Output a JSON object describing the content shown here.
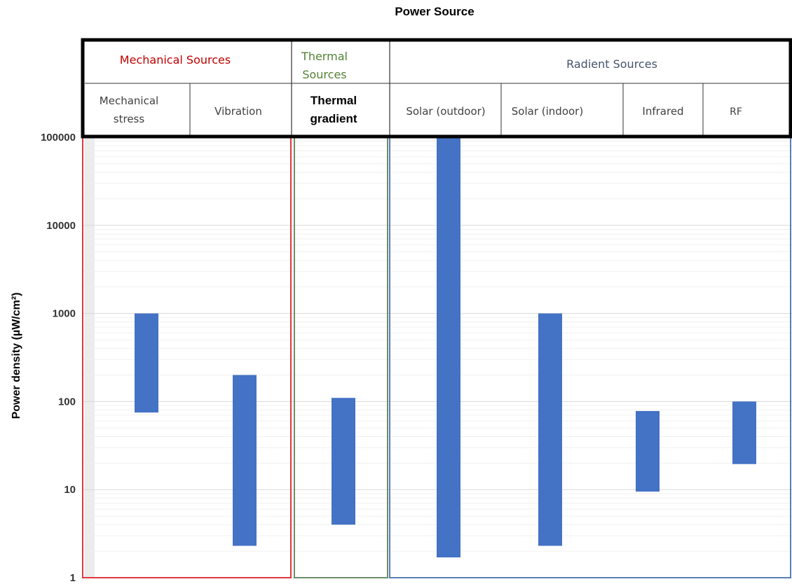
{
  "chart_data": {
    "type": "bar",
    "title": "Power Source",
    "ylabel": "Power density (µW/cm²)",
    "yscale": "log",
    "ylim": [
      1,
      100000
    ],
    "yticks": [
      {
        "value": 1,
        "label": "1"
      },
      {
        "value": 10,
        "label": "10"
      },
      {
        "value": 100,
        "label": "100"
      },
      {
        "value": 1000,
        "label": "1000"
      },
      {
        "value": 10000,
        "label": "10000"
      },
      {
        "value": 100000,
        "label": "100000"
      }
    ],
    "grid": true,
    "bar_color": "#4472C4",
    "groups": [
      {
        "label": "Mechanical Sources",
        "color": "#C00000",
        "border_color": "#E0383E",
        "categories": [
          "Mechanical stress",
          "Vibration"
        ]
      },
      {
        "label": "Thermal Sources",
        "color": "#548235",
        "border_color": "#6E8E6A",
        "categories": [
          "Thermal gradient"
        ]
      },
      {
        "label": "Radient Sources",
        "color": "#44546A",
        "border_color": "#5B7FB5",
        "categories": [
          "Solar (outdoor)",
          "Solar (indoor)",
          "Infrared",
          "RF"
        ]
      }
    ],
    "categories": [
      "Mechanical stress",
      "Vibration",
      "Thermal gradient",
      "Solar (outdoor)",
      "Solar (indoor)",
      "Infrared",
      "RF"
    ],
    "ranges": [
      {
        "category": "Mechanical stress",
        "low": 75,
        "high": 1000
      },
      {
        "category": "Vibration",
        "low": 2.3,
        "high": 200
      },
      {
        "category": "Thermal gradient",
        "low": 4,
        "high": 110
      },
      {
        "category": "Solar (outdoor)",
        "low": 1.7,
        "high": 100000
      },
      {
        "category": "Solar (indoor)",
        "low": 2.3,
        "high": 1000
      },
      {
        "category": "Infrared",
        "low": 9.5,
        "high": 78
      },
      {
        "category": "RF",
        "low": 19.5,
        "high": 100
      }
    ]
  }
}
